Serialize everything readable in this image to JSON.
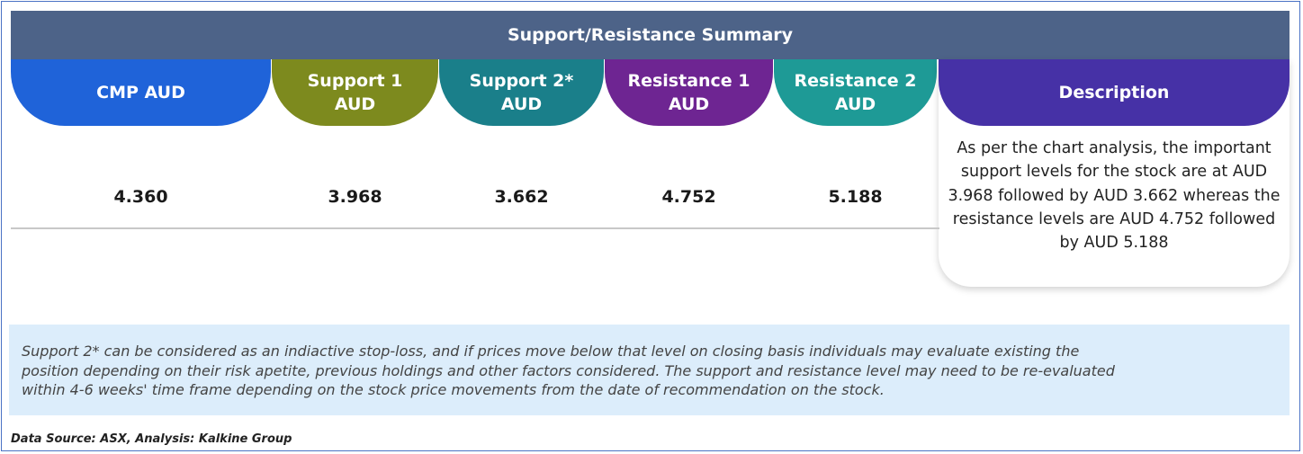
{
  "title": "Support/Resistance Summary",
  "columns": [
    {
      "label": "CMP AUD",
      "value": "4.360",
      "color": "#1f63d9"
    },
    {
      "label": "Support 1 AUD",
      "line1": "Support 1",
      "line2": "AUD",
      "value": "3.968",
      "color": "#7d8a1e"
    },
    {
      "label": "Support 2* AUD",
      "line1": "Support 2*",
      "line2": "AUD",
      "value": "3.662",
      "color": "#1a7f8a"
    },
    {
      "label": "Resistance 1 AUD",
      "line1": "Resistance 1",
      "line2": "AUD",
      "value": "4.752",
      "color": "#6e2592"
    },
    {
      "label": "Resistance 2 AUD",
      "line1": "Resistance 2",
      "line2": "AUD",
      "value": "5.188",
      "color": "#1e9a96"
    }
  ],
  "description": {
    "label": "Description",
    "color": "#4631a6",
    "text": "As per the chart analysis, the important support levels for the stock are at AUD 3.968 followed by AUD 3.662 whereas the resistance levels are AUD 4.752 followed by AUD 5.188"
  },
  "note_lines": [
    "Support 2* can be considered as an indiactive stop-loss, and if prices move below that level on closing basis individuals may evaluate existing the",
    "position depending on their risk apetite, previous holdings and other factors considered. The support and resistance level may need to be re-evaluated",
    "within 4-6 weeks' time frame depending on the stock price movements from  the date of recommendation on the stock."
  ],
  "source": "Data Source: ASX, Analysis: Kalkine Group"
}
